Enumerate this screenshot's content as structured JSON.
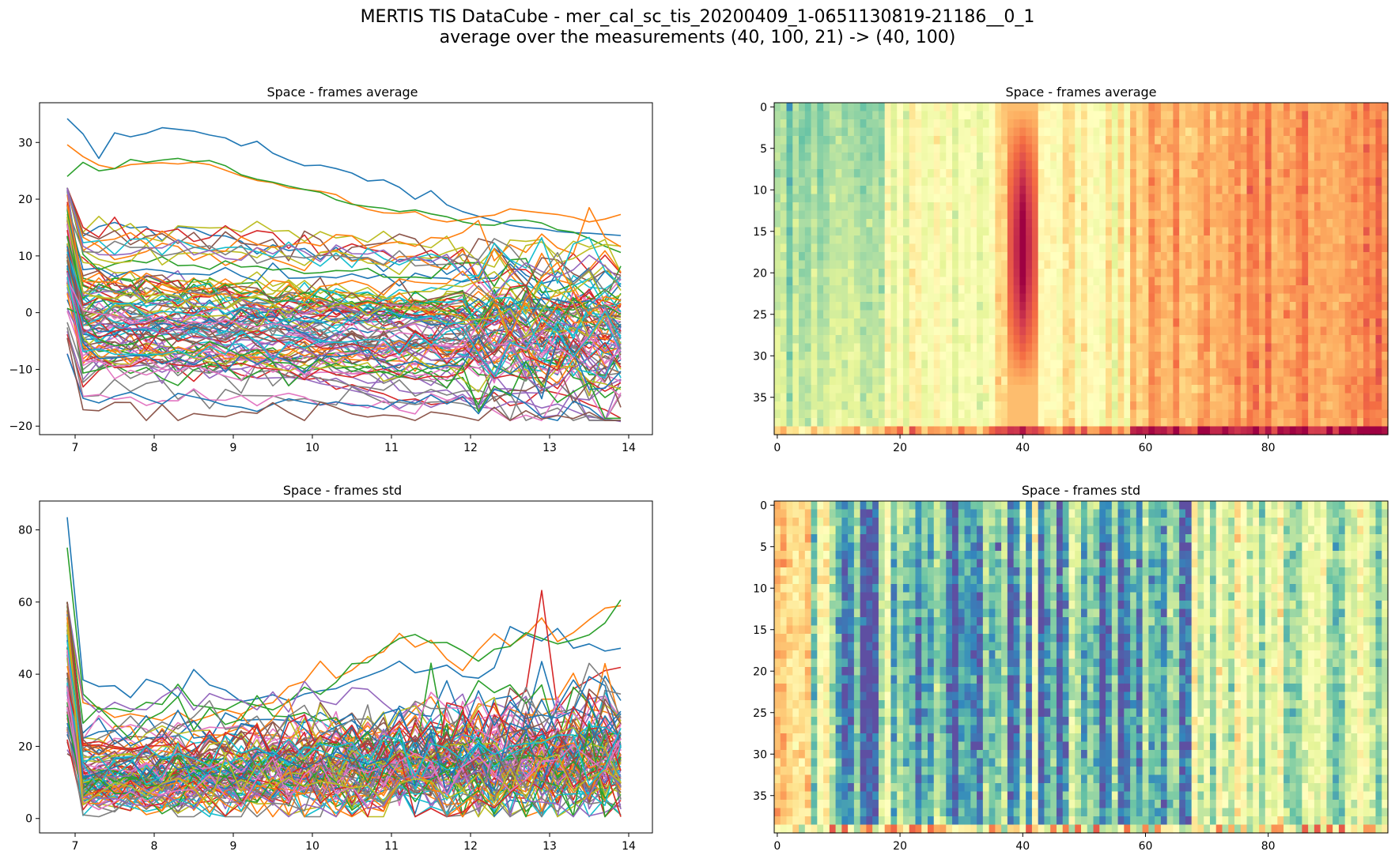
{
  "figure": {
    "title_line1": "MERTIS TIS DataCube - mer_cal_sc_tis_20200409_1-0651130819-21186__0_1",
    "title_line2": "average over the measurements (40, 100, 21) -> (40, 100)"
  },
  "chart_data": [
    {
      "id": "avg-lines",
      "type": "line",
      "title": "Space - frames average",
      "xlabel": "",
      "ylabel": "",
      "xlim": [
        6.55,
        14.3
      ],
      "ylim": [
        -21.5,
        37
      ],
      "xticks": [
        7,
        8,
        9,
        10,
        11,
        12,
        13,
        14
      ],
      "yticks": [
        -20,
        -10,
        0,
        10,
        20,
        30
      ],
      "x": [
        6.9,
        7.1,
        7.3,
        7.5,
        7.7,
        7.9,
        8.1,
        8.3,
        8.5,
        8.7,
        8.9,
        9.1,
        9.3,
        9.5,
        9.7,
        9.9,
        10.1,
        10.3,
        10.5,
        10.7,
        10.9,
        11.1,
        11.3,
        11.5,
        11.7,
        11.9,
        12.1,
        12.3,
        12.5,
        12.7,
        12.9,
        13.1,
        13.3,
        13.5,
        13.7,
        13.9
      ],
      "series_count": 100,
      "series_example": [
        {
          "values": [
            34.2,
            31.5,
            27.2,
            31.7,
            31.0,
            31.6,
            32.6,
            32.3,
            32.0,
            31.3,
            30.8,
            29.4,
            30.2,
            28.1,
            26.9,
            25.9,
            26.0,
            25.4,
            24.6,
            23.2,
            23.4,
            22.1,
            20.0,
            21.5,
            19.0,
            17.8,
            17.0,
            16.2,
            15.4,
            15.0,
            14.8,
            14.3,
            14.1,
            14.0,
            13.8,
            13.6
          ]
        },
        {
          "values": [
            29.6,
            27.5,
            26.0,
            25.4,
            26.1,
            26.3,
            26.4,
            26.2,
            26.5,
            26.1,
            25.1,
            24.1,
            23.3,
            22.9,
            22.0,
            21.7,
            21.4,
            20.8,
            19.2,
            18.2,
            17.6,
            17.5,
            17.8,
            16.5,
            16.0,
            16.4,
            16.9,
            17.2,
            18.3,
            17.9,
            17.6,
            17.3,
            16.8,
            16.0,
            16.5,
            17.3
          ]
        },
        {
          "values": [
            24.0,
            26.5,
            25.0,
            25.4,
            27.0,
            26.5,
            26.9,
            27.2,
            26.6,
            26.8,
            25.9,
            24.3,
            23.5,
            23.0,
            22.3,
            21.7,
            21.2,
            19.9,
            19.1,
            18.7,
            18.4,
            17.8,
            18.1,
            17.4,
            16.9,
            16.0,
            15.5,
            15.4,
            16.2,
            16.3,
            15.8,
            14.6,
            14.2,
            13.1,
            11.7,
            10.6
          ]
        },
        {
          "values": [
            -3.8,
            -13.1,
            -10.2,
            -8.6,
            -8.1,
            -8.2,
            -8.3,
            -9.8,
            -12.1,
            -9.4,
            -9.8,
            -11.0,
            -11.5,
            -10.1,
            -11.2,
            -11.8,
            -11.5,
            -13.5,
            -12.7,
            -13.6,
            -14.3,
            -15.5,
            -15.2,
            -16.2,
            -15.9,
            -15.0,
            -15.2,
            -14.1,
            -16.4,
            -15.8,
            -13.6,
            -14.2,
            -14.9,
            -16.2,
            -17.1,
            -18.6
          ]
        },
        {
          "values": [
            -3.3,
            -11.8,
            -8.5,
            -8.9,
            -9.5,
            -9.2,
            -10.5,
            -9.3,
            -8.9,
            -10.6,
            -10.1,
            -9.9,
            -11.6,
            -11.5,
            -11.4,
            -11.7,
            -12.5,
            -13.0,
            -13.7,
            -14.3,
            -15.1,
            -16.9,
            -15.4,
            -16.7,
            -15.6,
            -14.4,
            -16.6,
            -16.9,
            -15.7,
            -15.8,
            -16.8,
            -16.1,
            -17.3,
            -18.4,
            -18.7,
            -19.2
          ]
        }
      ]
    },
    {
      "id": "avg-heatmap",
      "type": "heatmap",
      "title": "Space - frames average",
      "rows": 40,
      "cols": 100,
      "xticks": [
        0,
        20,
        40,
        60,
        80
      ],
      "yticks": [
        0,
        5,
        10,
        15,
        20,
        25,
        30,
        35
      ],
      "colormap": "Spectral_r"
    },
    {
      "id": "std-lines",
      "type": "line",
      "title": "Space - frames std",
      "xlabel": "",
      "ylabel": "",
      "xlim": [
        6.55,
        14.3
      ],
      "ylim": [
        -4,
        88
      ],
      "xticks": [
        7,
        8,
        9,
        10,
        11,
        12,
        13,
        14
      ],
      "yticks": [
        0,
        20,
        40,
        60,
        80
      ],
      "x": [
        6.9,
        7.1,
        7.3,
        7.5,
        7.7,
        7.9,
        8.1,
        8.3,
        8.5,
        8.7,
        8.9,
        9.1,
        9.3,
        9.5,
        9.7,
        9.9,
        10.1,
        10.3,
        10.5,
        10.7,
        10.9,
        11.1,
        11.3,
        11.5,
        11.7,
        11.9,
        12.1,
        12.3,
        12.5,
        12.7,
        12.9,
        13.1,
        13.3,
        13.5,
        13.7,
        13.9
      ],
      "series_count": 100,
      "series_example": [
        {
          "values": [
            83.5,
            38.4,
            36.6,
            36.8,
            33.5,
            38.6,
            37.1,
            33.6,
            41.3,
            37.0,
            35.6,
            32.4,
            33.2,
            34.3,
            32.6,
            34.5,
            35.4,
            36.0,
            38.0,
            39.5,
            41.2,
            43.6,
            40.4,
            41.3,
            42.5,
            39.4,
            38.9,
            41.8,
            53.2,
            51.0,
            49.2,
            52.7,
            47.2,
            48.4,
            46.4,
            47.2
          ]
        },
        {
          "values": [
            59.0,
            32.1,
            30.8,
            28.0,
            29.0,
            28.2,
            27.2,
            29.6,
            27.0,
            28.4,
            30.1,
            28.9,
            31.3,
            32.1,
            36.6,
            38.0,
            43.6,
            38.9,
            41.1,
            44.7,
            46.2,
            51.3,
            47.5,
            49.4,
            44.2,
            41.0,
            46.7,
            51.2,
            47.9,
            50.9,
            55.6,
            49.0,
            51.5,
            55.1,
            58.3,
            59.0
          ]
        },
        {
          "values": [
            75.1,
            34.5,
            30.3,
            30.5,
            29.6,
            32.2,
            31.6,
            37.2,
            31.4,
            30.8,
            30.1,
            32.4,
            31.3,
            30.1,
            32.4,
            36.4,
            34.4,
            37.8,
            42.9,
            43.2,
            47.1,
            49.9,
            51.0,
            48.7,
            48.8,
            46.5,
            43.6,
            46.9,
            47.7,
            51.5,
            49.9,
            48.4,
            49.5,
            50.9,
            54.2,
            60.6
          ]
        },
        {
          "values": [
            40.3,
            19.5,
            16.2,
            14.8,
            19.2,
            12.1,
            14.0,
            13.5,
            15.8,
            11.0,
            16.1,
            14.9,
            18.7,
            14.3,
            17.5,
            19.6,
            15.8,
            21.7,
            24.7,
            18.8,
            22.7,
            25.3,
            20.8,
            26.8,
            25.5,
            22.1,
            29.9,
            22.6,
            32.6,
            35.3,
            63.2,
            30.1,
            35.9,
            38.4,
            41.0,
            41.9
          ]
        }
      ]
    },
    {
      "id": "std-heatmap",
      "type": "heatmap",
      "title": "Space - frames std",
      "rows": 40,
      "cols": 100,
      "xticks": [
        0,
        20,
        40,
        60,
        80
      ],
      "yticks": [
        0,
        5,
        10,
        15,
        20,
        25,
        30,
        35
      ],
      "colormap": "Spectral_r"
    }
  ],
  "colors": {
    "cycle": [
      "#1f77b4",
      "#ff7f0e",
      "#2ca02c",
      "#d62728",
      "#9467bd",
      "#8c564b",
      "#e377c2",
      "#7f7f7f",
      "#bcbd22",
      "#17becf"
    ],
    "spectral_r": [
      "#5e4fa2",
      "#3288bd",
      "#66c2a5",
      "#abdda4",
      "#e6f598",
      "#ffffbf",
      "#fee08b",
      "#fdae61",
      "#f46d43",
      "#d53e4f",
      "#9e0142"
    ]
  }
}
